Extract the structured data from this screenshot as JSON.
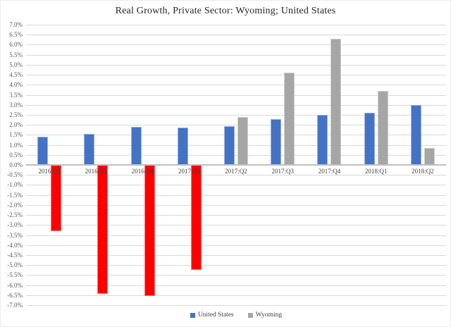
{
  "chart_data": {
    "type": "bar",
    "title": "Real Growth, Private Sector: Wyoming; United States",
    "categories": [
      "2016:Q2",
      "2016:Q3",
      "2016:Q4",
      "2017:Q1",
      "2017:Q2",
      "2017:Q3",
      "2017:Q4",
      "2018:Q1",
      "2018:Q2"
    ],
    "series": [
      {
        "name": "United States",
        "color": "#4472C4",
        "values": [
          1.4,
          1.55,
          1.9,
          1.85,
          1.95,
          2.3,
          2.5,
          2.6,
          3.0
        ]
      },
      {
        "name": "Wyoming",
        "color": "#A6A6A6",
        "negative_color": "#FF0000",
        "values": [
          -3.3,
          -6.45,
          -6.55,
          -5.25,
          2.4,
          4.6,
          6.3,
          3.7,
          0.85
        ]
      }
    ],
    "ylim": [
      -7.0,
      7.0
    ],
    "ytick_step": 0.5,
    "ytick_labels": [
      "7.0%",
      "6.5%",
      "6.0%",
      "5.5%",
      "5.0%",
      "4.5%",
      "4.0%",
      "3.5%",
      "3.0%",
      "2.5%",
      "2.0%",
      "1.5%",
      "1.0%",
      "0.5%",
      "0.0%",
      "-0.5%",
      "-1.0%",
      "-1.5%",
      "-2.0%",
      "-2.5%",
      "-3.0%",
      "-3.5%",
      "-4.0%",
      "-4.5%",
      "-5.0%",
      "-5.5%",
      "-6.0%",
      "-6.5%",
      "-7.0%"
    ],
    "xlabel": "",
    "ylabel": "",
    "grid": true,
    "legend_position": "bottom",
    "colors": {
      "gridline": "#d9d9d9",
      "zero_axis": "#bfbfbf",
      "title_text": "#262626",
      "tick_text": "#595959",
      "category_text": "#404040",
      "background": "#ffffff"
    }
  }
}
